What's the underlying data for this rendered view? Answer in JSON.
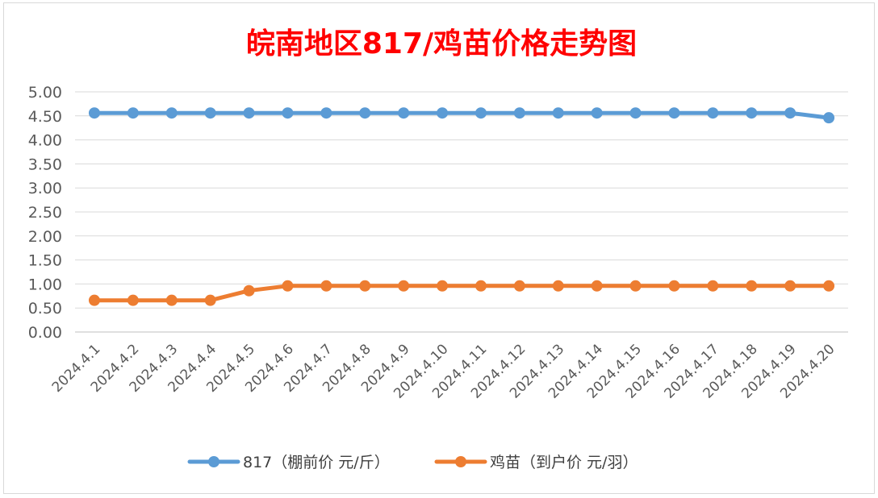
{
  "chart_data": {
    "type": "line",
    "title": "皖南地区817/鸡苗价格走势图",
    "categories": [
      "2024.4.1",
      "2024.4.2",
      "2024.4.3",
      "2024.4.4",
      "2024.4.5",
      "2024.4.6",
      "2024.4.7",
      "2024.4.8",
      "2024.4.9",
      "2024.4.10",
      "2024.4.11",
      "2024.4.12",
      "2024.4.13",
      "2024.4.14",
      "2024.4.15",
      "2024.4.16",
      "2024.4.17",
      "2024.4.18",
      "2024.4.19",
      "2024.4.20"
    ],
    "yticks": [
      "0.00",
      "0.50",
      "1.00",
      "1.50",
      "2.00",
      "2.50",
      "3.00",
      "3.50",
      "4.00",
      "4.50",
      "5.00"
    ],
    "ylim": [
      0,
      5
    ],
    "grid": true,
    "legend_position": "bottom",
    "series": [
      {
        "name": "817（棚前价 元/斤）",
        "color": "#5b9bd5",
        "values": [
          4.56,
          4.56,
          4.56,
          4.56,
          4.56,
          4.56,
          4.56,
          4.56,
          4.56,
          4.56,
          4.56,
          4.56,
          4.56,
          4.56,
          4.56,
          4.56,
          4.56,
          4.56,
          4.56,
          4.46
        ]
      },
      {
        "name": "鸡苗（到户价 元/羽）",
        "color": "#ed7d31",
        "values": [
          0.66,
          0.66,
          0.66,
          0.66,
          0.86,
          0.96,
          0.96,
          0.96,
          0.96,
          0.96,
          0.96,
          0.96,
          0.96,
          0.96,
          0.96,
          0.96,
          0.96,
          0.96,
          0.96,
          0.96
        ]
      }
    ]
  }
}
